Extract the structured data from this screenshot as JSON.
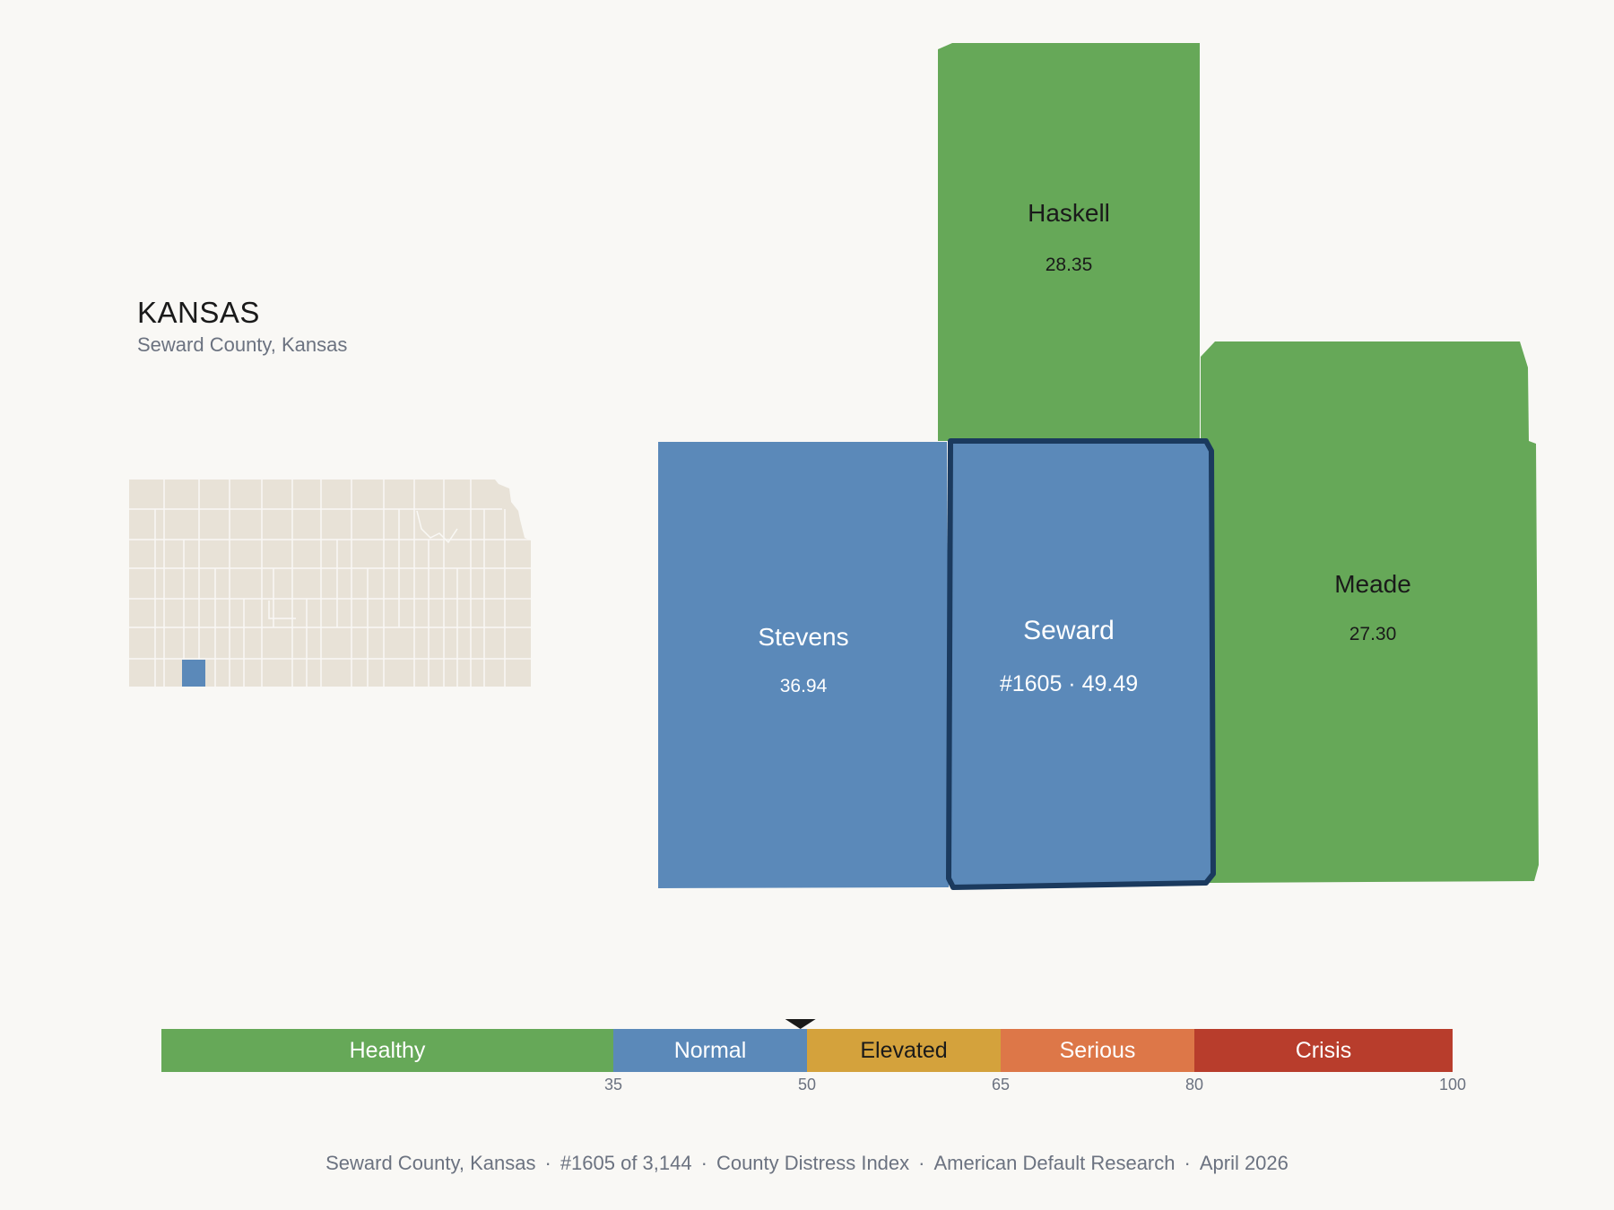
{
  "header": {
    "state_name": "KANSAS",
    "subtitle": "Seward County, Kansas"
  },
  "inset": {
    "highlight_color": "#5b89b9",
    "base_color": "#e8e2d7"
  },
  "counties": [
    {
      "name": "Haskell",
      "value": "28.35",
      "category": "Healthy",
      "color": "#66a858"
    },
    {
      "name": "Meade",
      "value": "27.30",
      "category": "Healthy",
      "color": "#66a858"
    },
    {
      "name": "Stevens",
      "value": "36.94",
      "category": "Normal",
      "color": "#5b89b9"
    },
    {
      "name": "Seward",
      "value": "#1605 · 49.49",
      "category": "Normal",
      "color": "#5b89b9",
      "selected": true
    }
  ],
  "legend": {
    "segments": [
      {
        "label": "Healthy",
        "from": 0,
        "to": 35,
        "color": "#66a858"
      },
      {
        "label": "Normal",
        "from": 35,
        "to": 50,
        "color": "#5b89b9"
      },
      {
        "label": "Elevated",
        "from": 50,
        "to": 65,
        "color": "#d4a23c"
      },
      {
        "label": "Serious",
        "from": 65,
        "to": 80,
        "color": "#dd7748"
      },
      {
        "label": "Crisis",
        "from": 80,
        "to": 100,
        "color": "#b83d2c"
      }
    ],
    "ticks": [
      "35",
      "50",
      "65",
      "80",
      "100"
    ],
    "marker_value": 49.49
  },
  "footer": {
    "county": "Seward County, Kansas",
    "rank": "#1605 of 3,144",
    "index": "County Distress Index",
    "source": "American Default Research",
    "date": "April 2026"
  }
}
